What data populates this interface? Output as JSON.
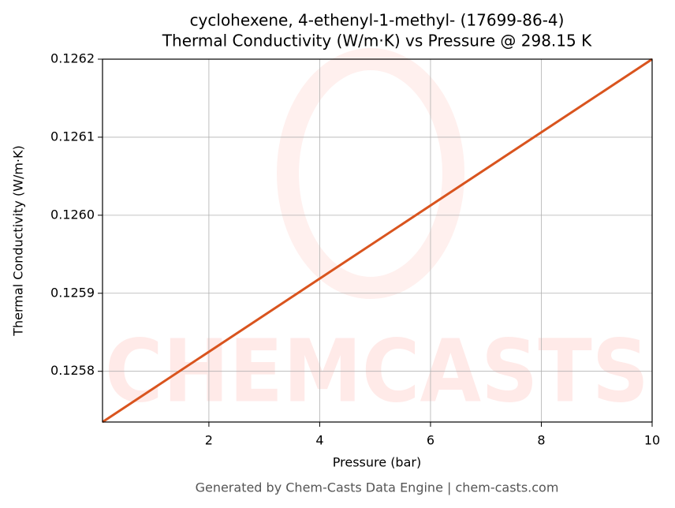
{
  "chart_data": {
    "type": "line",
    "title": "cyclohexene, 4-ethenyl-1-methyl- (17699-86-4)",
    "subtitle": "Thermal Conductivity (W/m·K) vs Pressure @ 298.15 K",
    "x_label": "Pressure (bar)",
    "y_label": "Thermal Conductivity (W/m·K)",
    "footer": "Generated by Chem-Casts Data Engine | chem-casts.com",
    "watermark": "CHEMCASTS",
    "x": [
      0.08,
      10
    ],
    "series": [
      {
        "name": "Thermal Conductivity",
        "color": "#d9541e",
        "values": [
          0.125735,
          0.1262
        ]
      }
    ],
    "xlim": [
      0.08,
      10
    ],
    "ylim": [
      0.125735,
      0.1262
    ],
    "xticks": [
      2,
      4,
      6,
      8,
      10
    ],
    "yticks": [
      0.1258,
      0.1259,
      {
        "value": 0.126,
        "label": "0.1260"
      },
      0.1261,
      0.1262
    ],
    "grid": true
  }
}
